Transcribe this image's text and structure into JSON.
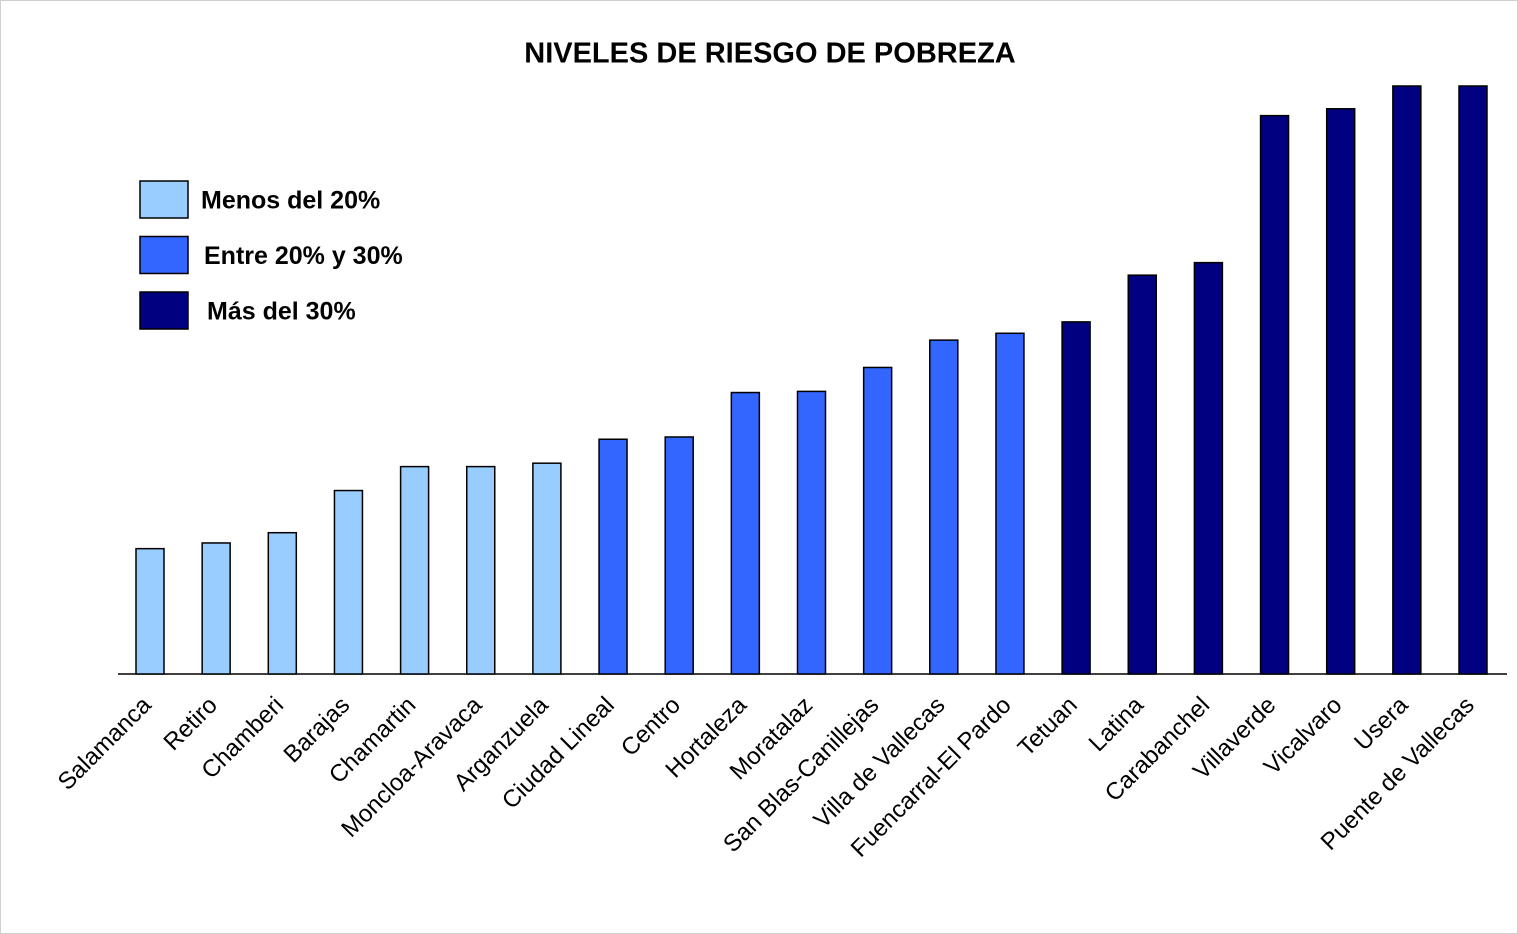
{
  "chart_data": {
    "type": "bar",
    "title": "NIVELES DE RIESGO DE POBREZA",
    "categories": [
      "Salamanca",
      "Retiro",
      "Chamberi",
      "Barajas",
      "Chamartin",
      "Moncloa-Aravaca",
      "Arganzuela",
      "Ciudad Lineal",
      "Centro",
      "Hortaleza",
      "Moratalaz",
      "San Blas-Canillejas",
      "Villa de Vallecas",
      "Fuencarral-El Pardo",
      "Tetuan",
      "Latina",
      "Carabanchel",
      "Villaverde",
      "Vicalvaro",
      "Usera",
      "Puente de Vallecas"
    ],
    "values": [
      11.0,
      11.5,
      12.4,
      16.1,
      18.2,
      18.2,
      18.5,
      20.6,
      20.8,
      24.7,
      24.8,
      26.9,
      29.3,
      29.9,
      30.9,
      35.0,
      36.1,
      49.0,
      49.6,
      51.6,
      51.6
    ],
    "colors": [
      "#99ccff",
      "#99ccff",
      "#99ccff",
      "#99ccff",
      "#99ccff",
      "#99ccff",
      "#99ccff",
      "#3366ff",
      "#3366ff",
      "#3366ff",
      "#3366ff",
      "#3366ff",
      "#3366ff",
      "#3366ff",
      "#000080",
      "#000080",
      "#000080",
      "#000080",
      "#000080",
      "#000080",
      "#000080"
    ],
    "legend": [
      {
        "name": "Menos del 20%",
        "color": "#99ccff"
      },
      {
        "name": "Entre 20% y 30%",
        "color": "#3366ff"
      },
      {
        "name": "Más del 30%",
        "color": "#000080"
      }
    ],
    "ylim": [
      0,
      51.6
    ]
  }
}
